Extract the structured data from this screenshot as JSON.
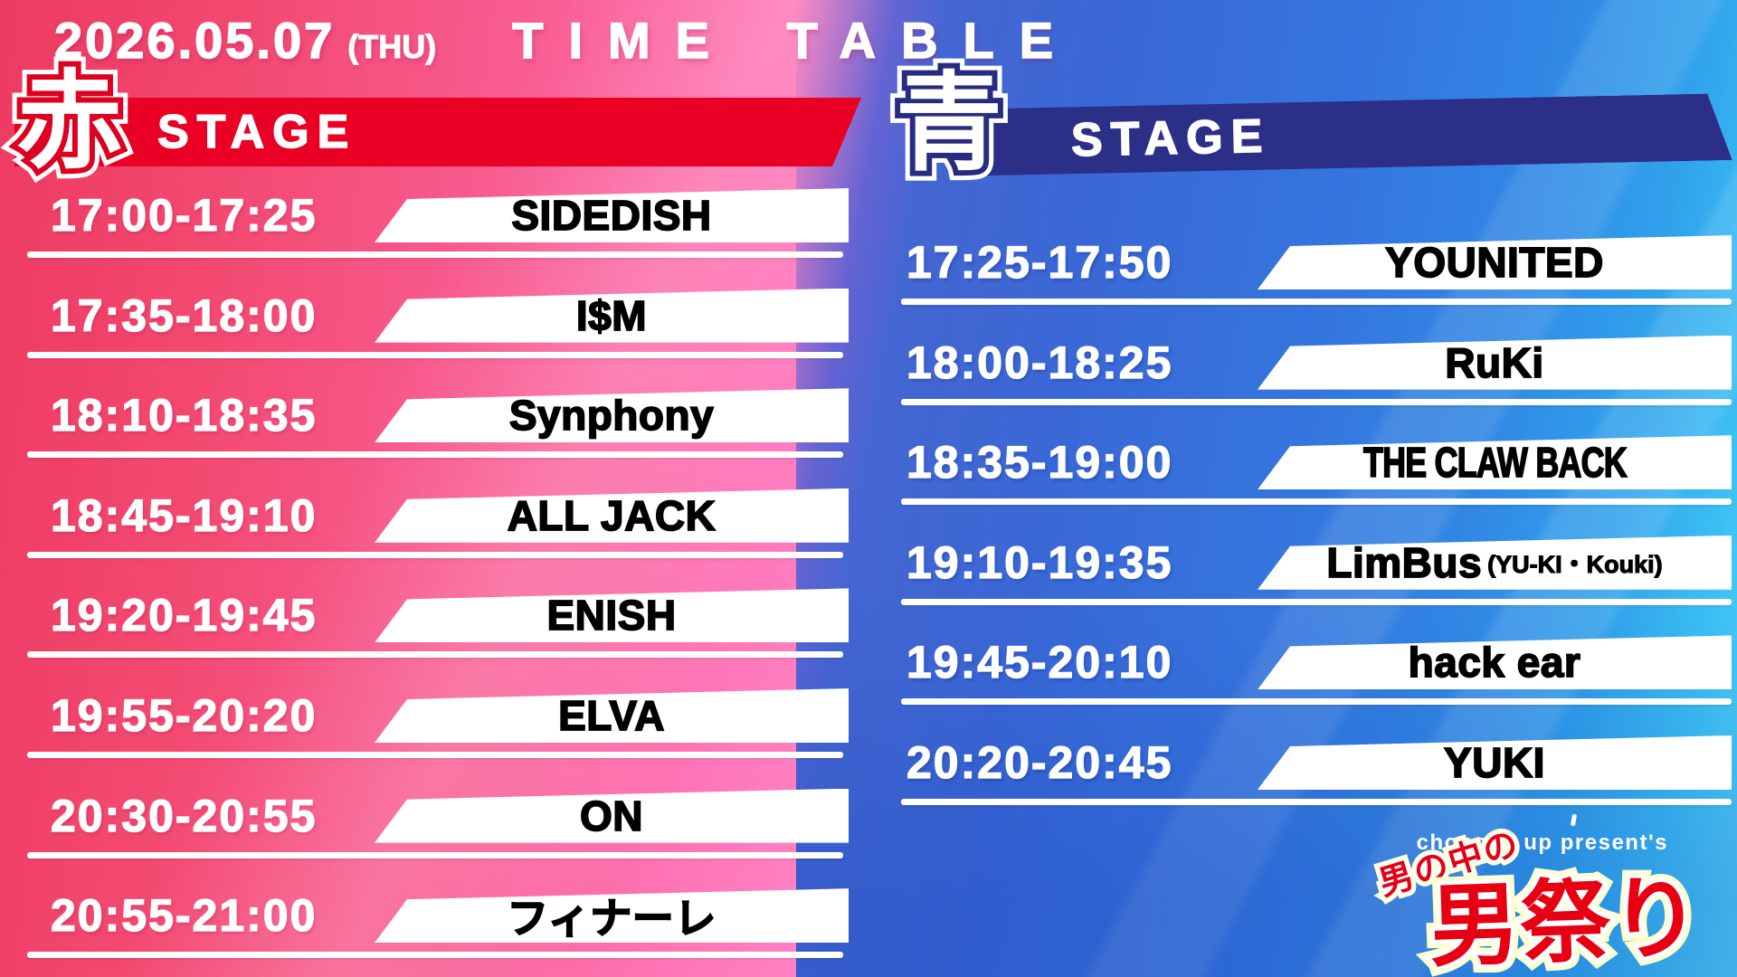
{
  "header": {
    "date": "2026.05.07",
    "day": "(THU)",
    "title": "TIME TABLE"
  },
  "stages": [
    {
      "id": "red",
      "kanji": "赤",
      "label": "STAGE",
      "rows": [
        {
          "time": "17:00-17:25",
          "artist": "SIDEDISH",
          "suffix": ""
        },
        {
          "time": "17:35-18:00",
          "artist": "I$M",
          "suffix": ""
        },
        {
          "time": "18:10-18:35",
          "artist": "Synphony",
          "suffix": ""
        },
        {
          "time": "18:45-19:10",
          "artist": "ALL JACK",
          "suffix": ""
        },
        {
          "time": "19:20-19:45",
          "artist": "ENISH",
          "suffix": ""
        },
        {
          "time": "19:55-20:20",
          "artist": "ELVA",
          "suffix": ""
        },
        {
          "time": "20:30-20:55",
          "artist": "ON",
          "suffix": ""
        },
        {
          "time": "20:55-21:00",
          "artist": "フィナーレ",
          "suffix": ""
        }
      ]
    },
    {
      "id": "blue",
      "kanji": "青",
      "label": "STAGE",
      "rows": [
        {
          "time": "17:25-17:50",
          "artist": "YOUNITED",
          "suffix": ""
        },
        {
          "time": "18:00-18:25",
          "artist": "RuKi",
          "suffix": ""
        },
        {
          "time": "18:35-19:00",
          "artist": "THE CLAW BACK",
          "suffix": ""
        },
        {
          "time": "19:10-19:35",
          "artist": "LimBus",
          "suffix": "(YU-KI・Kouki)"
        },
        {
          "time": "19:45-20:10",
          "artist": "hack ear",
          "suffix": ""
        },
        {
          "time": "20:20-20:45",
          "artist": "YUKI",
          "suffix": ""
        }
      ]
    }
  ],
  "footer_logo": {
    "presenter": "chopped up present's",
    "tagline": "男の中の",
    "title": "男祭り"
  },
  "colors": {
    "red-accent": "#e90024",
    "blue-accent": "#2b2f88",
    "logo-red": "#e60012"
  }
}
